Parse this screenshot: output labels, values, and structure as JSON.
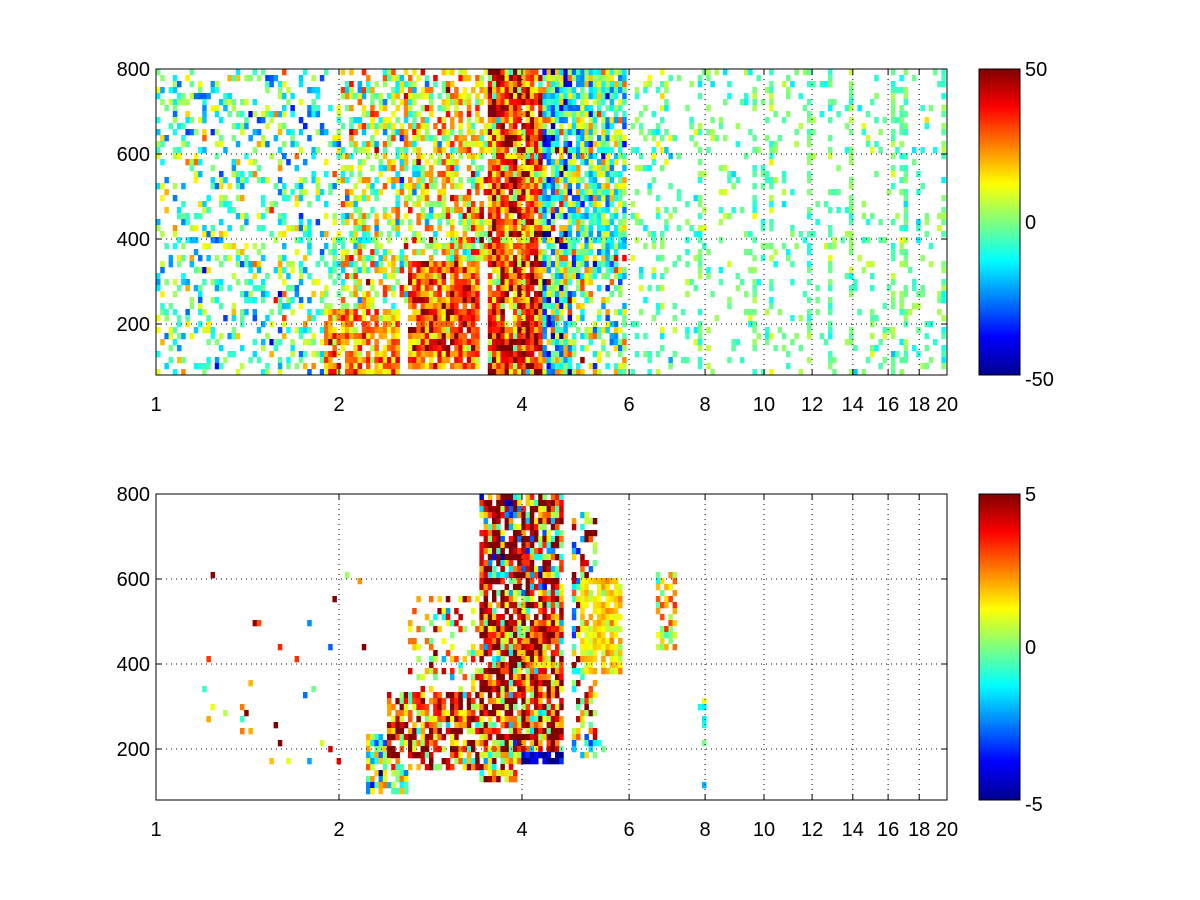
{
  "chart_data": [
    {
      "type": "heatmap",
      "title": "",
      "xlabel": "",
      "ylabel": "",
      "xlim": [
        1,
        20
      ],
      "ylim": [
        80,
        800
      ],
      "x_scale": "log",
      "xticks": [
        1,
        2,
        4,
        6,
        8,
        10,
        12,
        14,
        16,
        18,
        20
      ],
      "yticks": [
        200,
        400,
        600,
        800
      ],
      "grid": true,
      "colormap": "jet",
      "clim": [
        -50,
        50
      ],
      "colorbar_ticks": [
        50,
        0,
        -50
      ],
      "background_color": "#ffffff",
      "regions": [
        {
          "x": [
            1.0,
            2.0
          ],
          "y": [
            80,
            800
          ],
          "mean": -4,
          "spread": 14,
          "density": 0.3
        },
        {
          "x": [
            1.9,
            2.5
          ],
          "y": [
            80,
            230
          ],
          "mean": 22,
          "spread": 10,
          "density": 0.85
        },
        {
          "x": [
            2.0,
            3.0
          ],
          "y": [
            230,
            800
          ],
          "mean": 8,
          "spread": 16,
          "density": 0.55
        },
        {
          "x": [
            2.6,
            3.4
          ],
          "y": [
            100,
            350
          ],
          "mean": 30,
          "spread": 12,
          "density": 0.9
        },
        {
          "x": [
            3.0,
            3.5
          ],
          "y": [
            350,
            800
          ],
          "mean": 16,
          "spread": 14,
          "density": 0.7
        },
        {
          "x": [
            3.5,
            4.3
          ],
          "y": [
            80,
            800
          ],
          "mean": 32,
          "spread": 18,
          "density": 0.95
        },
        {
          "x": [
            4.3,
            4.8
          ],
          "y": [
            80,
            800
          ],
          "mean": -8,
          "spread": 22,
          "density": 0.85
        },
        {
          "x": [
            4.8,
            5.9
          ],
          "y": [
            300,
            800
          ],
          "mean": -4,
          "spread": 16,
          "density": 0.8
        },
        {
          "x": [
            4.8,
            5.9
          ],
          "y": [
            80,
            300
          ],
          "mean": 2,
          "spread": 16,
          "density": 0.5
        },
        {
          "x": [
            6.0,
            7.2
          ],
          "y": [
            420,
            640
          ],
          "mean": 6,
          "spread": 16,
          "density": 0.7
        },
        {
          "x": [
            6.0,
            7.2
          ],
          "y": [
            80,
            800
          ],
          "mean": -2,
          "spread": 8,
          "density": 0.2
        },
        {
          "x": [
            7.2,
            20.0
          ],
          "y": [
            80,
            800
          ],
          "mean": -2,
          "spread": 6,
          "density": 0.12
        }
      ],
      "stripes": [
        2.1,
        2.3,
        7.9,
        9.6,
        10.2,
        11.9,
        12.8,
        13.8,
        16.4,
        16.8,
        17.0,
        19.6
      ]
    },
    {
      "type": "heatmap",
      "title": "",
      "xlabel": "",
      "ylabel": "",
      "xlim": [
        1,
        20
      ],
      "ylim": [
        80,
        800
      ],
      "x_scale": "log",
      "xticks": [
        1,
        2,
        4,
        6,
        8,
        10,
        12,
        14,
        16,
        18,
        20
      ],
      "yticks": [
        200,
        400,
        600,
        800
      ],
      "grid": true,
      "colormap": "jet",
      "clim": [
        -5,
        5
      ],
      "colorbar_ticks": [
        5,
        0,
        -5
      ],
      "background_color": "#ffffff",
      "regions": [
        {
          "x": [
            1.2,
            2.2
          ],
          "y": [
            150,
            620
          ],
          "mean": 3,
          "spread": 3,
          "density": 0.02
        },
        {
          "x": [
            2.2,
            2.6
          ],
          "y": [
            100,
            230
          ],
          "mean": 0,
          "spread": 1.8,
          "density": 0.75
        },
        {
          "x": [
            2.4,
            3.4
          ],
          "y": [
            150,
            330
          ],
          "mean": 3.5,
          "spread": 2.2,
          "density": 0.75
        },
        {
          "x": [
            2.6,
            3.4
          ],
          "y": [
            330,
            560
          ],
          "mean": 1.5,
          "spread": 1.8,
          "density": 0.3
        },
        {
          "x": [
            3.4,
            3.9
          ],
          "y": [
            120,
            560
          ],
          "mean": 3.5,
          "spread": 2.5,
          "density": 0.85
        },
        {
          "x": [
            3.4,
            4.7
          ],
          "y": [
            560,
            800
          ],
          "mean": 3,
          "spread": 3.5,
          "density": 0.85
        },
        {
          "x": [
            3.9,
            4.7
          ],
          "y": [
            170,
            560
          ],
          "mean": 3.5,
          "spread": 2.5,
          "density": 0.9
        },
        {
          "x": [
            4.0,
            4.7
          ],
          "y": [
            160,
            200
          ],
          "mean": -4.5,
          "spread": 0.6,
          "density": 0.9
        },
        {
          "x": [
            4.8,
            5.3
          ],
          "y": [
            180,
            760
          ],
          "mean": 2,
          "spread": 2.5,
          "density": 0.45
        },
        {
          "x": [
            5.0,
            5.8
          ],
          "y": [
            380,
            600
          ],
          "mean": 1.5,
          "spread": 0.6,
          "density": 0.85
        },
        {
          "x": [
            5.1,
            5.6
          ],
          "y": [
            200,
            220
          ],
          "mean": -1.5,
          "spread": 1,
          "density": 0.6
        },
        {
          "x": [
            6.6,
            7.2
          ],
          "y": [
            430,
            610
          ],
          "mean": 1.5,
          "spread": 1.2,
          "density": 0.45
        },
        {
          "x": [
            7.8,
            8.0
          ],
          "y": [
            110,
            320
          ],
          "mean": -0.5,
          "spread": 0.8,
          "density": 0.1
        }
      ],
      "stripes": []
    }
  ]
}
